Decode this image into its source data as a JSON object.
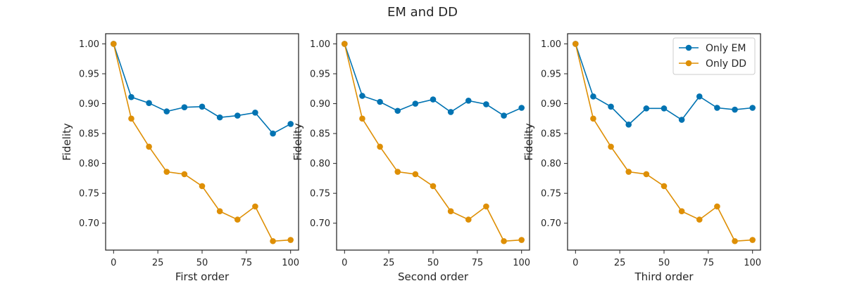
{
  "chart_data": {
    "type": "line",
    "title": "EM and DD",
    "colors": {
      "Only EM": "#0173b2",
      "Only DD": "#de8f05"
    },
    "x_ticks": [
      0,
      25,
      50,
      75,
      100
    ],
    "y_ticks": [
      "0.70",
      "0.75",
      "0.80",
      "0.85",
      "0.90",
      "0.95",
      "1.00"
    ],
    "xlim": [
      -4.5,
      104.5
    ],
    "ylim": [
      0.655,
      1.017
    ],
    "legend": {
      "location": "top-right",
      "entries": [
        "Only EM",
        "Only DD"
      ]
    },
    "panels": [
      {
        "xlabel": "First order",
        "ylabel": "Fidelity",
        "show_legend": false,
        "series": [
          {
            "name": "Only EM",
            "x": [
              0,
              10,
              20,
              30,
              40,
              50,
              60,
              70,
              80,
              90,
              100
            ],
            "y": [
              1.0,
              0.911,
              0.901,
              0.887,
              0.894,
              0.895,
              0.877,
              0.88,
              0.885,
              0.85,
              0.866
            ]
          },
          {
            "name": "Only DD",
            "x": [
              0,
              10,
              20,
              30,
              40,
              50,
              60,
              70,
              80,
              90,
              100
            ],
            "y": [
              1.0,
              0.875,
              0.828,
              0.786,
              0.782,
              0.762,
              0.72,
              0.706,
              0.728,
              0.67,
              0.672
            ]
          }
        ]
      },
      {
        "xlabel": "Second order",
        "ylabel": "Fidelity",
        "show_legend": false,
        "series": [
          {
            "name": "Only EM",
            "x": [
              0,
              10,
              20,
              30,
              40,
              50,
              60,
              70,
              80,
              90,
              100
            ],
            "y": [
              1.0,
              0.913,
              0.903,
              0.888,
              0.9,
              0.907,
              0.886,
              0.905,
              0.899,
              0.88,
              0.893
            ]
          },
          {
            "name": "Only DD",
            "x": [
              0,
              10,
              20,
              30,
              40,
              50,
              60,
              70,
              80,
              90,
              100
            ],
            "y": [
              1.0,
              0.875,
              0.828,
              0.786,
              0.782,
              0.762,
              0.72,
              0.706,
              0.728,
              0.67,
              0.672
            ]
          }
        ]
      },
      {
        "xlabel": "Third order",
        "ylabel": "Fidelity",
        "show_legend": true,
        "series": [
          {
            "name": "Only EM",
            "x": [
              0,
              10,
              20,
              30,
              40,
              50,
              60,
              70,
              80,
              90,
              100
            ],
            "y": [
              1.0,
              0.912,
              0.895,
              0.865,
              0.892,
              0.892,
              0.873,
              0.912,
              0.893,
              0.89,
              0.893
            ]
          },
          {
            "name": "Only DD",
            "x": [
              0,
              10,
              20,
              30,
              40,
              50,
              60,
              70,
              80,
              90,
              100
            ],
            "y": [
              1.0,
              0.875,
              0.828,
              0.786,
              0.782,
              0.762,
              0.72,
              0.706,
              0.728,
              0.67,
              0.672
            ]
          }
        ]
      }
    ]
  }
}
